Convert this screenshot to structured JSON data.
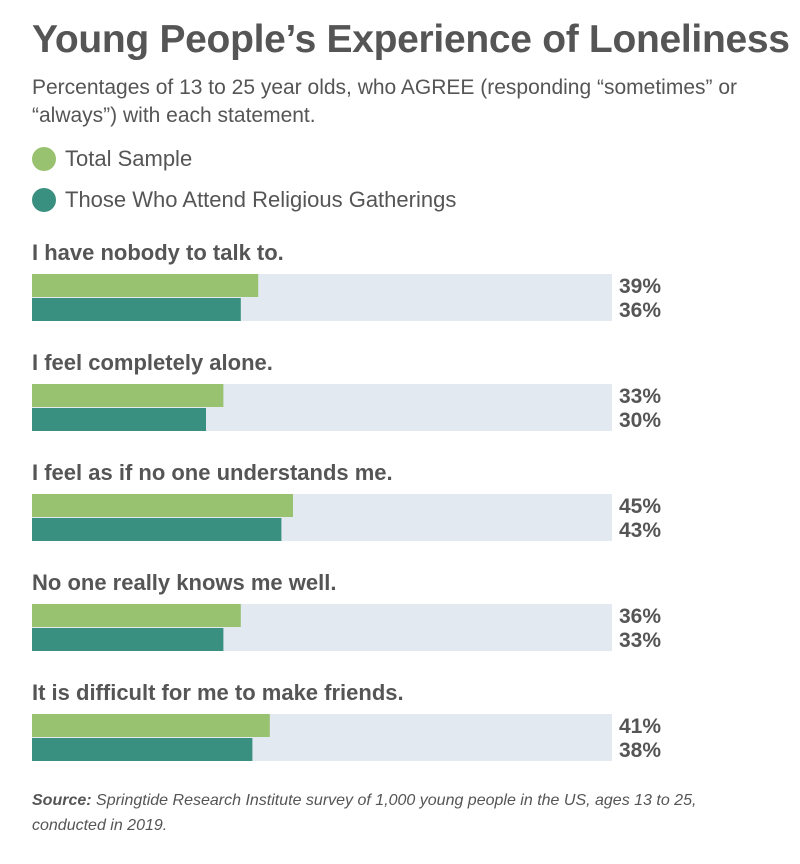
{
  "title": "Young People’s Experience of Loneliness",
  "subtitle": "Percentages of 13 to 25 year olds, who AGREE (responding “sometimes” or “always”) with each statement.",
  "legend": [
    {
      "label": "Total Sample",
      "color": "#98c170"
    },
    {
      "label": "Those Who Attend Religious Gatherings",
      "color": "#3a9080"
    }
  ],
  "chart_data": {
    "type": "bar",
    "orientation": "horizontal",
    "categories": [
      "I have nobody to talk to.",
      "I feel completely alone.",
      "I feel as if no one understands me.",
      "No one really knows me well.",
      "It is difficult for me to make friends."
    ],
    "series": [
      {
        "name": "Total Sample",
        "values": [
          39,
          33,
          45,
          36,
          41
        ],
        "color": "#98c170"
      },
      {
        "name": "Those Who Attend Religious Gatherings",
        "values": [
          36,
          30,
          43,
          33,
          38
        ],
        "color": "#3a9080"
      }
    ],
    "value_labels": [
      [
        "39%",
        "33%",
        "45%",
        "36%",
        "41%"
      ],
      [
        "36%",
        "30%",
        "43%",
        "33%",
        "38%"
      ]
    ],
    "xlim": [
      0,
      100
    ],
    "track_color": "#e3e9f1",
    "grid": false,
    "legend_position": "top-left"
  },
  "source": {
    "prefix": "Source:",
    "text": "Springtide Research Institute survey of 1,000 young people in the US, ages 13 to 25, conducted in 2019."
  }
}
